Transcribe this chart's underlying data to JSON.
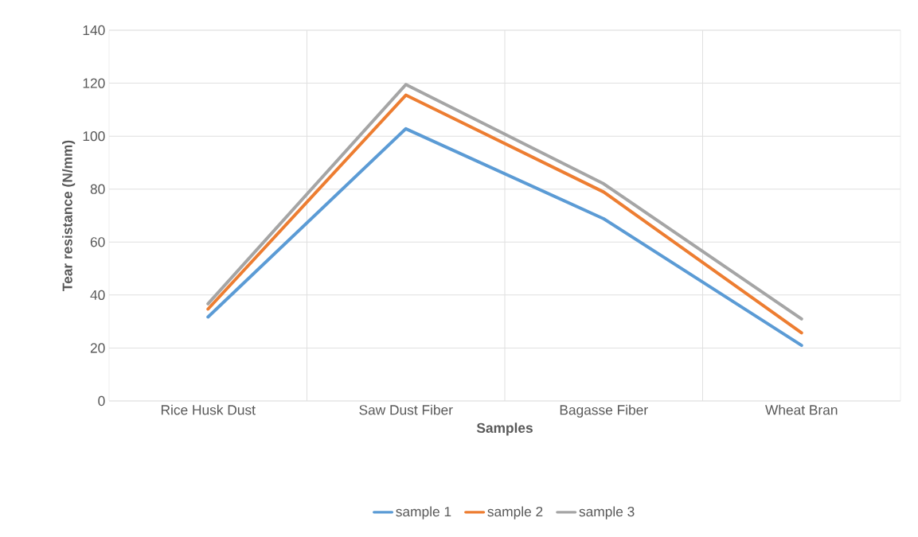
{
  "chart_data": {
    "type": "line",
    "xlabel": "Samples",
    "ylabel": "Tear resistance (N/mm)",
    "categories": [
      "Rice Husk Dust",
      "Saw Dust Fiber",
      "Bagasse Fiber",
      "Wheat Bran"
    ],
    "series": [
      {
        "name": "sample 1",
        "color": "#5b9bd5",
        "values": [
          31.7,
          102.8,
          68.8,
          21
        ]
      },
      {
        "name": "sample 2",
        "color": "#ed7d31",
        "values": [
          34.7,
          115.5,
          78.9,
          25.7
        ]
      },
      {
        "name": "sample 3",
        "color": "#a5a5a5",
        "values": [
          36.7,
          119.5,
          82,
          31
        ]
      }
    ],
    "ylim": [
      0,
      140
    ],
    "yticks": [
      0,
      20,
      40,
      60,
      80,
      100,
      120,
      140
    ],
    "grid": true,
    "legend": "bottom",
    "marker": "none",
    "line_style": "solid"
  }
}
